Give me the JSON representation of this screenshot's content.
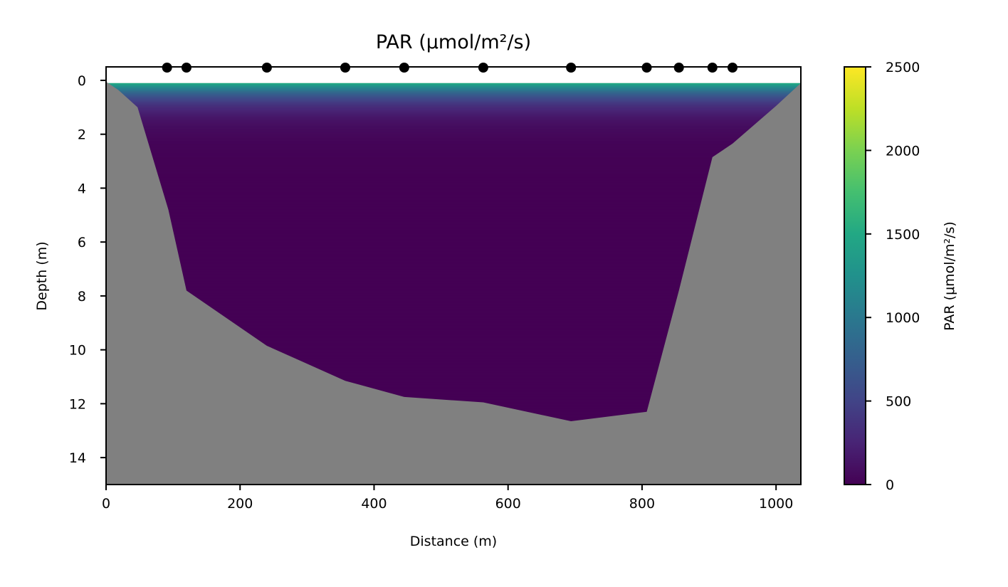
{
  "chart_data": {
    "type": "heatmap",
    "title": "PAR (μmol/m²/s)",
    "xlabel": "Distance (m)",
    "ylabel": "Depth (m)",
    "xlim": [
      0,
      1037
    ],
    "ylim": [
      15,
      -0.5
    ],
    "xticks": [
      0,
      200,
      400,
      600,
      800,
      1000
    ],
    "yticks": [
      0,
      2,
      4,
      6,
      8,
      10,
      12,
      14
    ],
    "station_distances": [
      91,
      120,
      240,
      357,
      445,
      563,
      694,
      807,
      855,
      905,
      935
    ],
    "bottom_profile": {
      "distance": [
        0,
        18,
        47,
        93,
        120,
        240,
        357,
        445,
        563,
        694,
        807,
        855,
        905,
        935,
        1000,
        1037
      ],
      "depth": [
        0.05,
        0.35,
        1.0,
        4.8,
        7.8,
        9.85,
        11.15,
        11.75,
        11.95,
        12.65,
        12.3,
        7.8,
        2.85,
        2.35,
        0.95,
        0.1
      ]
    },
    "colorbar": {
      "label": "PAR (μmol/m²/s)",
      "range": [
        0,
        2500
      ],
      "ticks": [
        0,
        500,
        1000,
        1500,
        2000,
        2500
      ],
      "colormap": "viridis"
    },
    "surface_par": 1500,
    "attenuation_per_m": 1.8,
    "colors": {
      "bottom": "#808080",
      "station_marker": "#000000"
    }
  }
}
